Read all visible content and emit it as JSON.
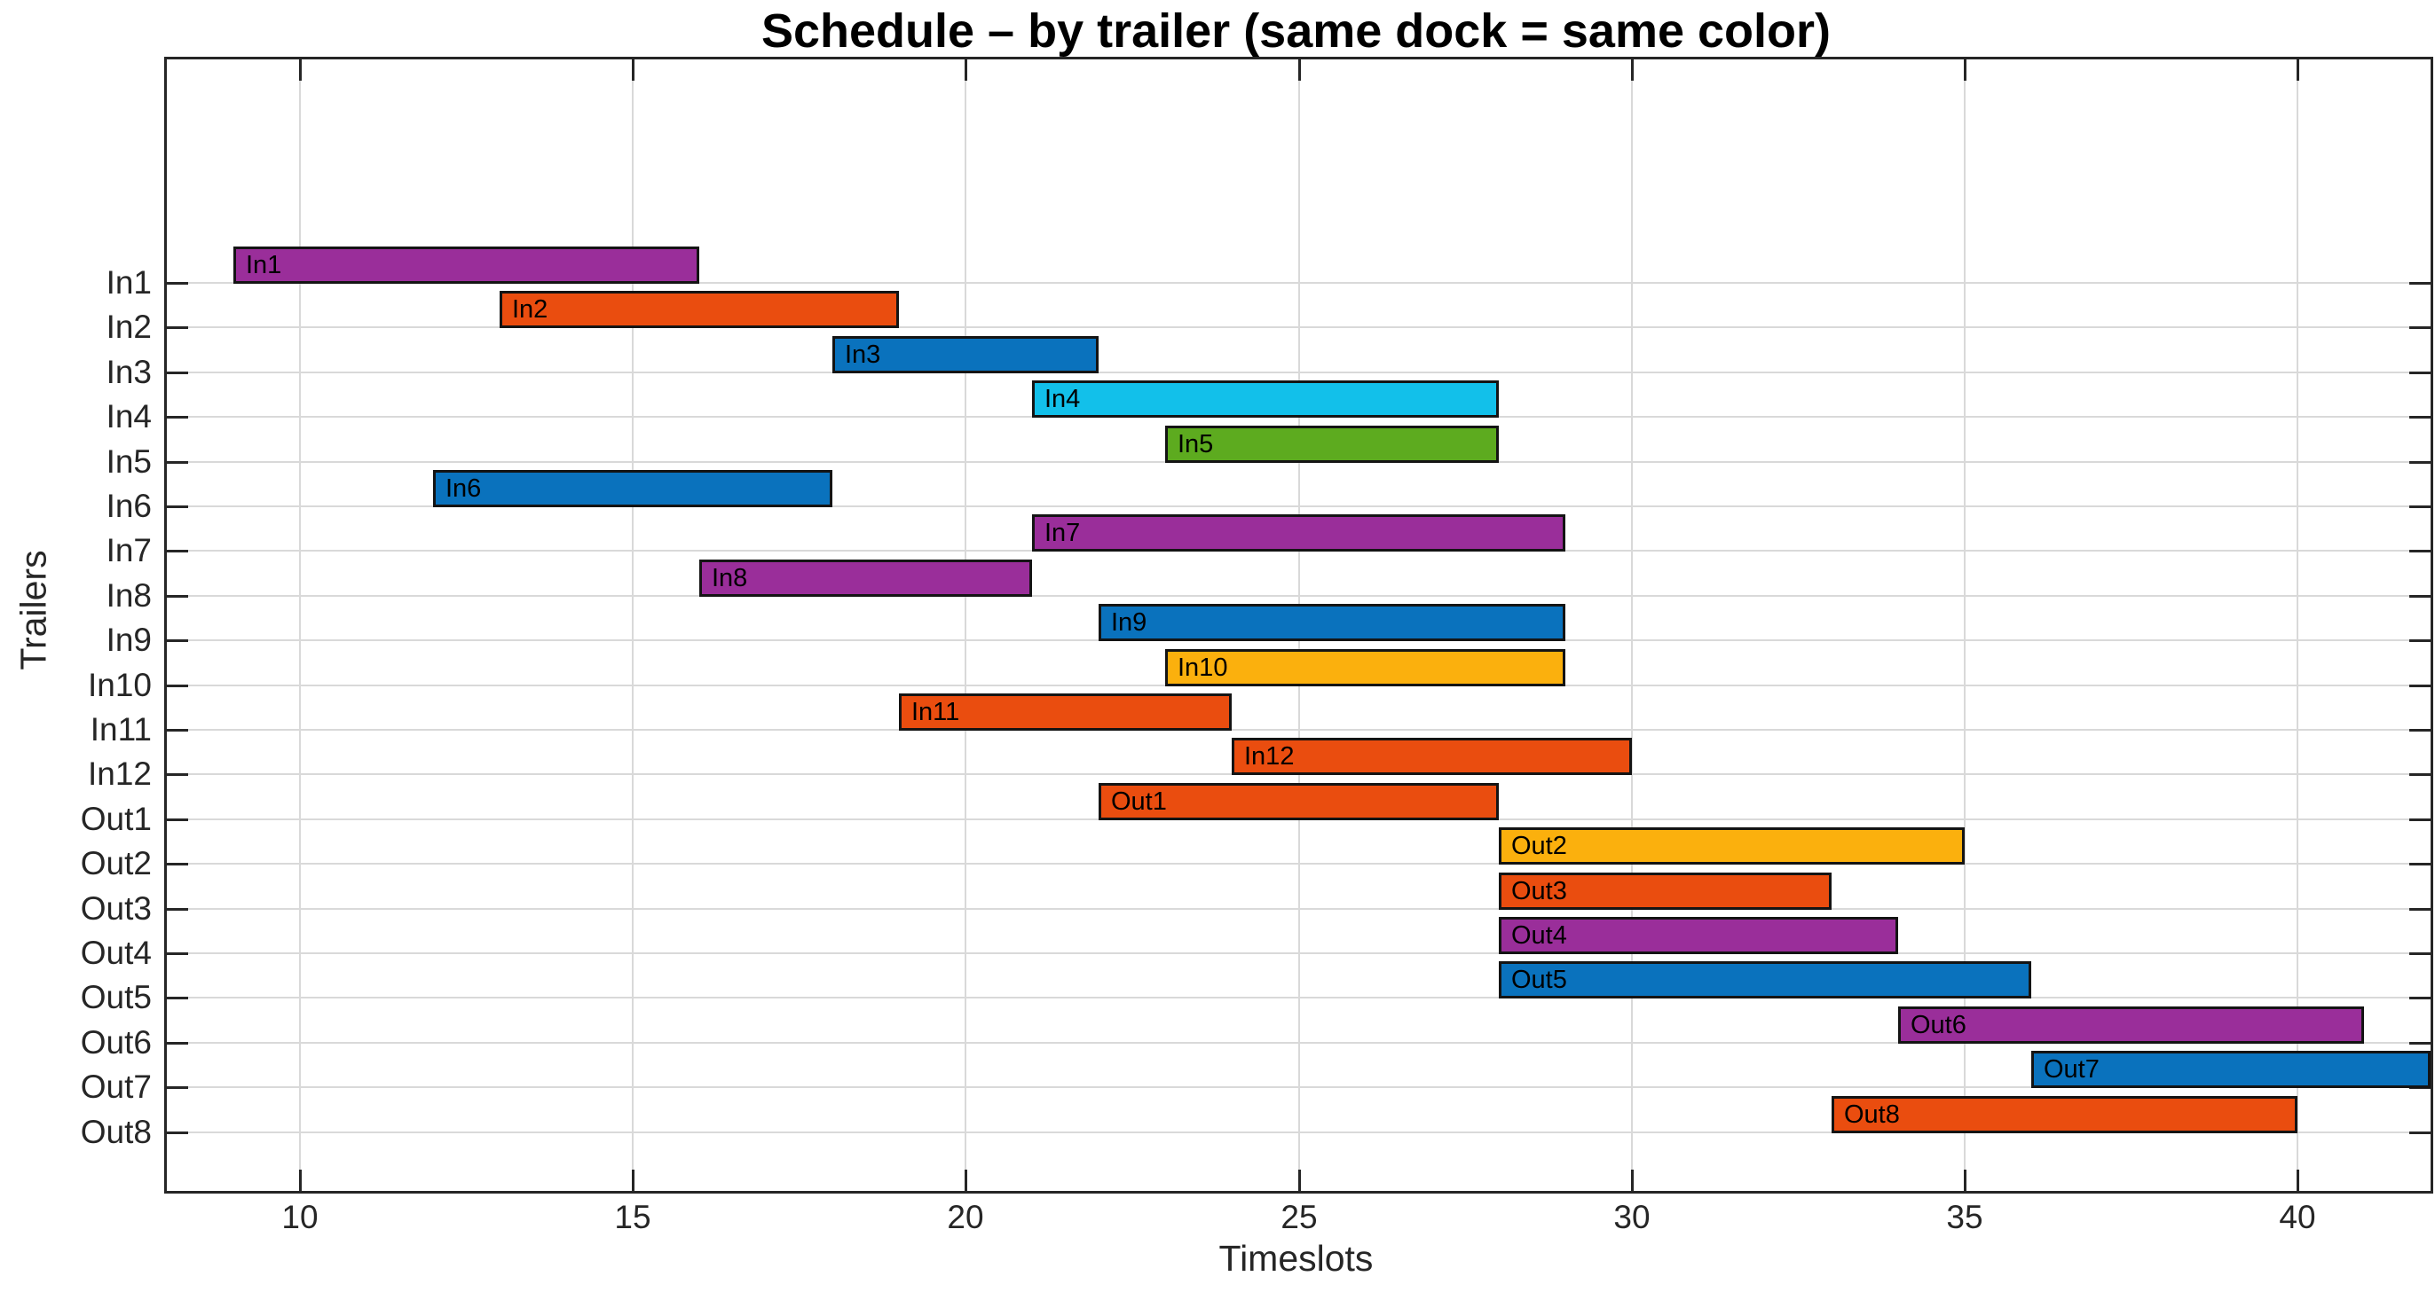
{
  "chart_data": {
    "type": "bar",
    "subtype": "horizontal-gantt",
    "title": "Schedule – by trailer (same dock = same color)",
    "xlabel": "Timeslots",
    "ylabel": "Trailers",
    "xlim": [
      8,
      42
    ],
    "xticks": [
      10,
      15,
      20,
      25,
      30,
      35,
      40
    ],
    "grid": true,
    "legend": "none",
    "categories": [
      "In1",
      "In2",
      "In3",
      "In4",
      "In5",
      "In6",
      "In7",
      "In8",
      "In9",
      "In10",
      "In11",
      "In12",
      "Out1",
      "Out2",
      "Out3",
      "Out4",
      "Out5",
      "Out6",
      "Out7",
      "Out8"
    ],
    "bars": [
      {
        "trailer": "In1",
        "label": "In1",
        "start": 9,
        "end": 16,
        "dock_color": "purple"
      },
      {
        "trailer": "In2",
        "label": "In2",
        "start": 13,
        "end": 19,
        "dock_color": "orange"
      },
      {
        "trailer": "In3",
        "label": "In3",
        "start": 18,
        "end": 22,
        "dock_color": "blue"
      },
      {
        "trailer": "In4",
        "label": "In4",
        "start": 21,
        "end": 28,
        "dock_color": "cyan"
      },
      {
        "trailer": "In5",
        "label": "In5",
        "start": 23,
        "end": 28,
        "dock_color": "green"
      },
      {
        "trailer": "In6",
        "label": "In6",
        "start": 12,
        "end": 18,
        "dock_color": "blue"
      },
      {
        "trailer": "In7",
        "label": "In7",
        "start": 21,
        "end": 29,
        "dock_color": "purple"
      },
      {
        "trailer": "In8",
        "label": "In8",
        "start": 16,
        "end": 21,
        "dock_color": "purple"
      },
      {
        "trailer": "In9",
        "label": "In9",
        "start": 22,
        "end": 29,
        "dock_color": "blue"
      },
      {
        "trailer": "In10",
        "label": "In10",
        "start": 23,
        "end": 29,
        "dock_color": "yellow"
      },
      {
        "trailer": "In11",
        "label": "In11",
        "start": 19,
        "end": 24,
        "dock_color": "orange"
      },
      {
        "trailer": "In12",
        "label": "In12",
        "start": 24,
        "end": 30,
        "dock_color": "orange"
      },
      {
        "trailer": "Out1",
        "label": "Out1",
        "start": 22,
        "end": 28,
        "dock_color": "orange"
      },
      {
        "trailer": "Out2",
        "label": "Out2",
        "start": 28,
        "end": 35,
        "dock_color": "yellow"
      },
      {
        "trailer": "Out3",
        "label": "Out3",
        "start": 28,
        "end": 33,
        "dock_color": "orange"
      },
      {
        "trailer": "Out4",
        "label": "Out4",
        "start": 28,
        "end": 34,
        "dock_color": "purple"
      },
      {
        "trailer": "Out5",
        "label": "Out5",
        "start": 28,
        "end": 36,
        "dock_color": "blue"
      },
      {
        "trailer": "Out6",
        "label": "Out6",
        "start": 34,
        "end": 41,
        "dock_color": "purple"
      },
      {
        "trailer": "Out7",
        "label": "Out7",
        "start": 36,
        "end": 42,
        "dock_color": "blue"
      },
      {
        "trailer": "Out8",
        "label": "Out8",
        "start": 33,
        "end": 40,
        "dock_color": "orange"
      }
    ],
    "dock_colors": {
      "blue": "#0a72bd",
      "orange": "#ea4d0f",
      "yellow": "#fbb00d",
      "purple": "#9a2e9a",
      "green": "#5dab1f",
      "cyan": "#12c0ea"
    },
    "style_colors": {
      "axis": "#262626",
      "grid": "#d9d9d9",
      "bar_border": "#141414",
      "background": "#ffffff"
    }
  }
}
